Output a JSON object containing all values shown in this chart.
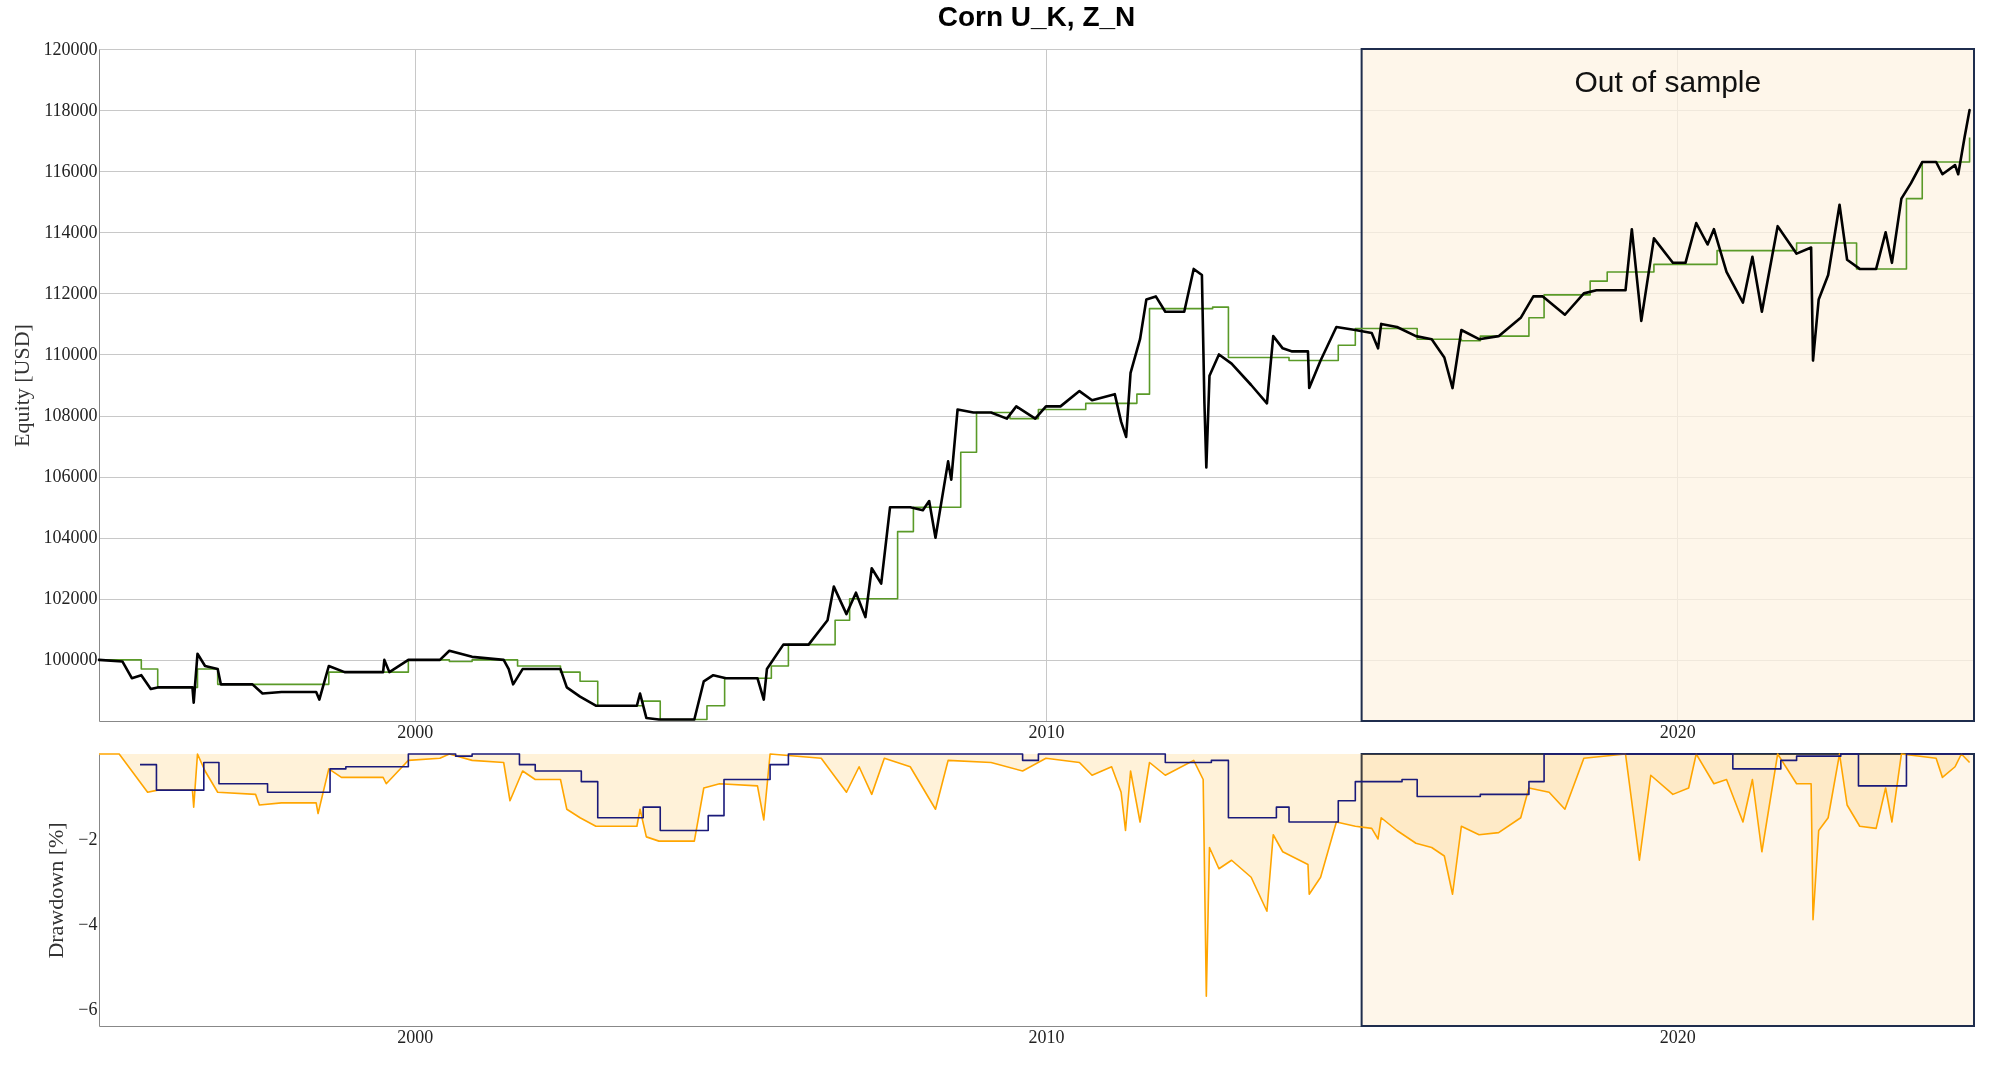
{
  "chart_data": [
    {
      "type": "line",
      "title": "Corn U_K, Z_N",
      "ylabel": "Equity [USD]",
      "xlim": [
        1995,
        2024.7
      ],
      "xticks": [
        2000,
        2010,
        2020
      ],
      "ylim": [
        98000,
        120000
      ],
      "yticks": [
        100000,
        102000,
        104000,
        106000,
        108000,
        110000,
        112000,
        114000,
        116000,
        118000,
        120000
      ],
      "grid": true,
      "bands": [
        {
          "axis": "x",
          "from": 2015,
          "to": 2024.7,
          "label": "Out of sample",
          "color": "#fdf3e3"
        }
      ],
      "series": [
        {
          "type": "step",
          "color": "#5a9a28",
          "x": [
            1995.0,
            1995.67,
            1995.93,
            1996.56,
            1996.88,
            1998.64,
            1999.9,
            2000.55,
            2000.91,
            2001.63,
            2002.31,
            2002.62,
            2002.9,
            2003.62,
            2003.89,
            2004.63,
            2004.91,
            2005.65,
            2005.92,
            2006.66,
            2006.89,
            2007.65,
            2007.9,
            2008.65,
            2008.9,
            2009.43,
            2009.88,
            2010.63,
            2011.44,
            2011.64,
            2012.64,
            2012.89,
            2013.85,
            2014.63,
            2014.9,
            2015.88,
            2016.58,
            2016.88,
            2017.65,
            2017.89,
            2018.62,
            2018.89,
            2019.63,
            2020.63,
            2021.64,
            2021.89,
            2022.84,
            2023.63,
            2023.88,
            2024.48,
            2024.63
          ],
          "values": [
            100000,
            99700,
            99100,
            99700,
            99200,
            99600,
            100000,
            99950,
            100000,
            99800,
            99600,
            99300,
            98500,
            98650,
            98050,
            98500,
            99400,
            99800,
            100500,
            101300,
            102000,
            104200,
            105000,
            106800,
            108100,
            107900,
            108200,
            108400,
            108700,
            111500,
            111550,
            109900,
            109800,
            110300,
            110850,
            110500,
            110450,
            110600,
            111200,
            111950,
            112400,
            112700,
            112950,
            113400,
            113400,
            113650,
            112800,
            115100,
            116300,
            116300,
            117100
          ]
        },
        {
          "type": "line",
          "color": "#000000",
          "x": [
            1995.0,
            1995.37,
            1995.52,
            1995.67,
            1995.82,
            1995.93,
            1996.48,
            1996.5,
            1996.56,
            1996.68,
            1996.88,
            1996.93,
            1997.43,
            1997.59,
            1997.89,
            1998.44,
            1998.49,
            1998.64,
            1998.89,
            1999.5,
            1999.52,
            1999.6,
            1999.9,
            2000.4,
            2000.55,
            2000.91,
            2001.41,
            2001.49,
            2001.56,
            2001.71,
            2001.91,
            2002.31,
            2002.41,
            2002.62,
            2002.87,
            2002.92,
            2003.52,
            2003.57,
            2003.67,
            2003.87,
            2004.43,
            2004.58,
            2004.73,
            2004.93,
            2005.43,
            2005.53,
            2005.58,
            2005.84,
            2006.24,
            2006.54,
            2006.64,
            2006.84,
            2006.99,
            2007.14,
            2007.24,
            2007.39,
            2007.53,
            2007.85,
            2008.05,
            2008.15,
            2008.25,
            2008.45,
            2008.5,
            2008.6,
            2008.85,
            2009.13,
            2009.38,
            2009.53,
            2009.83,
            2010.0,
            2010.23,
            2010.53,
            2010.73,
            2011.09,
            2011.19,
            2011.27,
            2011.34,
            2011.49,
            2011.59,
            2011.74,
            2011.89,
            2012.19,
            2012.34,
            2012.47,
            2012.51,
            2012.54,
            2012.59,
            2012.74,
            2012.94,
            2013.25,
            2013.5,
            2013.6,
            2013.75,
            2013.9,
            2014.15,
            2014.17,
            2014.35,
            2014.6,
            2014.9,
            2015.16,
            2015.26,
            2015.31,
            2015.56,
            2015.86,
            2016.11,
            2016.31,
            2016.44,
            2016.58,
            2016.86,
            2017.17,
            2017.52,
            2017.72,
            2017.87,
            2018.22,
            2018.52,
            2018.72,
            2019.18,
            2019.28,
            2019.43,
            2019.63,
            2019.93,
            2020.13,
            2020.3,
            2020.48,
            2020.58,
            2020.78,
            2021.04,
            2021.19,
            2021.34,
            2021.59,
            2021.89,
            2022.12,
            2022.15,
            2022.24,
            2022.39,
            2022.57,
            2022.69,
            2022.89,
            2023.15,
            2023.3,
            2023.4,
            2023.55,
            2023.7,
            2023.88,
            2024.1,
            2024.2,
            2024.4,
            2024.45,
            2024.55,
            2024.63
          ],
          "values": [
            100000,
            99950,
            99400,
            99500,
            99050,
            99100,
            99100,
            98600,
            100200,
            99800,
            99700,
            99200,
            99200,
            98900,
            98950,
            98950,
            98700,
            99800,
            99600,
            99600,
            100000,
            99600,
            100000,
            100000,
            100300,
            100100,
            100000,
            99700,
            99200,
            99700,
            99700,
            99700,
            99100,
            98800,
            98500,
            98500,
            98500,
            98900,
            98100,
            98050,
            98050,
            99300,
            99500,
            99400,
            99400,
            98700,
            99700,
            100500,
            100500,
            101300,
            102400,
            101500,
            102200,
            101400,
            103000,
            102500,
            105000,
            105000,
            104900,
            105200,
            104000,
            106500,
            105900,
            108200,
            108100,
            108100,
            107900,
            108300,
            107900,
            108300,
            108300,
            108800,
            108500,
            108700,
            107800,
            107300,
            109400,
            110500,
            111800,
            111900,
            111400,
            111400,
            112800,
            112600,
            108400,
            106300,
            109300,
            110000,
            109700,
            109000,
            108400,
            110600,
            110200,
            110100,
            110100,
            108900,
            109800,
            110900,
            110800,
            110700,
            110200,
            111000,
            110900,
            110600,
            110500,
            109900,
            108900,
            110800,
            110500,
            110600,
            111200,
            111900,
            111900,
            111300,
            112000,
            112100,
            112100,
            114100,
            111100,
            113800,
            113000,
            113000,
            114300,
            113600,
            114100,
            112700,
            111700,
            113200,
            111400,
            114200,
            113300,
            113500,
            109800,
            111800,
            112600,
            114900,
            113100,
            112800,
            112800,
            114000,
            113000,
            115100,
            115600,
            116300,
            116300,
            115900,
            116200,
            115900,
            117100,
            118000
          ]
        }
      ]
    },
    {
      "type": "line",
      "ylabel": "Drawdown [%]",
      "xlim": [
        1995,
        2024.7
      ],
      "xticks": [
        2000,
        2010,
        2020
      ],
      "ylim": [
        -6.4,
        0
      ],
      "yticks": [
        -6,
        -4,
        -2
      ],
      "bands": [
        {
          "axis": "x",
          "from": 2015,
          "to": 2024.7,
          "color": "#fdf3e3"
        }
      ],
      "series": [
        {
          "type": "area",
          "color": "#ffa500",
          "x": [
            1995.0,
            1995.32,
            1995.52,
            1995.77,
            1995.93,
            1996.48,
            1996.5,
            1996.56,
            1996.68,
            1996.88,
            1997.48,
            1997.54,
            1997.89,
            1998.44,
            1998.47,
            1998.64,
            1998.84,
            1999.5,
            1999.55,
            1999.9,
            2000.4,
            2000.55,
            2000.91,
            2001.41,
            2001.51,
            2001.71,
            2001.91,
            2002.31,
            2002.41,
            2002.62,
            2002.87,
            2003.52,
            2003.57,
            2003.67,
            2003.87,
            2004.43,
            2004.58,
            2004.83,
            2005.43,
            2005.53,
            2005.63,
            2006.44,
            2006.84,
            2007.04,
            2007.24,
            2007.44,
            2007.85,
            2008.25,
            2008.45,
            2009.13,
            2009.63,
            2010.0,
            2010.53,
            2010.73,
            2011.04,
            2011.19,
            2011.26,
            2011.34,
            2011.49,
            2011.64,
            2011.89,
            2012.34,
            2012.49,
            2012.54,
            2012.59,
            2012.74,
            2012.94,
            2013.25,
            2013.5,
            2013.6,
            2013.75,
            2014.15,
            2014.17,
            2014.35,
            2014.6,
            2014.9,
            2015.16,
            2015.26,
            2015.31,
            2015.56,
            2015.86,
            2016.11,
            2016.31,
            2016.44,
            2016.58,
            2016.86,
            2017.17,
            2017.52,
            2017.65,
            2017.97,
            2018.22,
            2018.52,
            2019.18,
            2019.4,
            2019.58,
            2019.93,
            2020.18,
            2020.3,
            2020.58,
            2020.78,
            2021.04,
            2021.19,
            2021.34,
            2021.59,
            2021.89,
            2022.12,
            2022.15,
            2022.24,
            2022.39,
            2022.57,
            2022.69,
            2022.89,
            2023.15,
            2023.3,
            2023.4,
            2023.55,
            2024.1,
            2024.2,
            2024.4,
            2024.5,
            2024.63
          ],
          "values": [
            0,
            0,
            -0.4,
            -0.9,
            -0.85,
            -0.85,
            -1.25,
            0,
            -0.4,
            -0.9,
            -0.95,
            -1.2,
            -1.15,
            -1.15,
            -1.4,
            -0.35,
            -0.55,
            -0.55,
            -0.7,
            -0.15,
            -0.1,
            0,
            -0.15,
            -0.2,
            -1.1,
            -0.4,
            -0.6,
            -0.6,
            -1.3,
            -1.5,
            -1.7,
            -1.7,
            -1.3,
            -1.95,
            -2.05,
            -2.05,
            -0.8,
            -0.7,
            -0.75,
            -1.55,
            0,
            -0.1,
            -0.9,
            -0.3,
            -0.95,
            -0.1,
            -0.3,
            -1.3,
            -0.15,
            -0.2,
            -0.4,
            -0.1,
            -0.2,
            -0.5,
            -0.3,
            -0.9,
            -1.8,
            -0.4,
            -1.6,
            -0.2,
            -0.5,
            -0.15,
            -0.6,
            -5.7,
            -2.2,
            -2.7,
            -2.5,
            -2.9,
            -3.7,
            -1.9,
            -2.3,
            -2.6,
            -3.3,
            -2.9,
            -1.6,
            -1.7,
            -1.75,
            -2.0,
            -1.5,
            -1.8,
            -2.1,
            -2.2,
            -2.4,
            -3.3,
            -1.7,
            -1.9,
            -1.85,
            -1.5,
            -0.8,
            -0.9,
            -1.3,
            -0.1,
            0,
            -2.5,
            -0.5,
            -0.95,
            -0.8,
            0,
            -0.7,
            -0.6,
            -1.6,
            -0.6,
            -2.3,
            0,
            -0.7,
            -0.7,
            -3.9,
            -1.8,
            -1.5,
            0,
            -1.2,
            -1.7,
            -1.75,
            -0.8,
            -1.6,
            0,
            -0.1,
            -0.55,
            -0.3,
            0,
            -0.2
          ]
        },
        {
          "type": "step",
          "color": "#1a1a7a",
          "x": [
            1995.65,
            1995.91,
            1996.66,
            1996.9,
            1997.67,
            1998.66,
            1998.91,
            1999.9,
            2000.65,
            2000.91,
            2001.66,
            2001.91,
            2002.64,
            2002.9,
            2003.62,
            2003.89,
            2004.65,
            2004.9,
            2005.63,
            2005.92,
            2009.63,
            2009.88,
            2011.89,
            2012.62,
            2012.89,
            2013.65,
            2013.85,
            2014.63,
            2014.9,
            2015.64,
            2015.88,
            2016.88,
            2017.65,
            2017.89,
            2020.88,
            2021.64,
            2021.89,
            2022.59,
            2022.87,
            2023.63,
            2024.63
          ],
          "values": [
            -0.25,
            -0.85,
            -0.2,
            -0.7,
            -0.9,
            -0.35,
            -0.3,
            0,
            -0.05,
            0,
            -0.25,
            -0.4,
            -0.65,
            -1.5,
            -1.25,
            -1.8,
            -1.45,
            -0.6,
            -0.25,
            0,
            -0.15,
            0,
            -0.2,
            -0.15,
            -1.5,
            -1.25,
            -1.6,
            -1.1,
            -0.65,
            -0.6,
            -1.0,
            -0.95,
            -0.65,
            0,
            -0.35,
            -0.15,
            -0.05,
            0,
            -0.75,
            0,
            0
          ]
        }
      ]
    }
  ]
}
